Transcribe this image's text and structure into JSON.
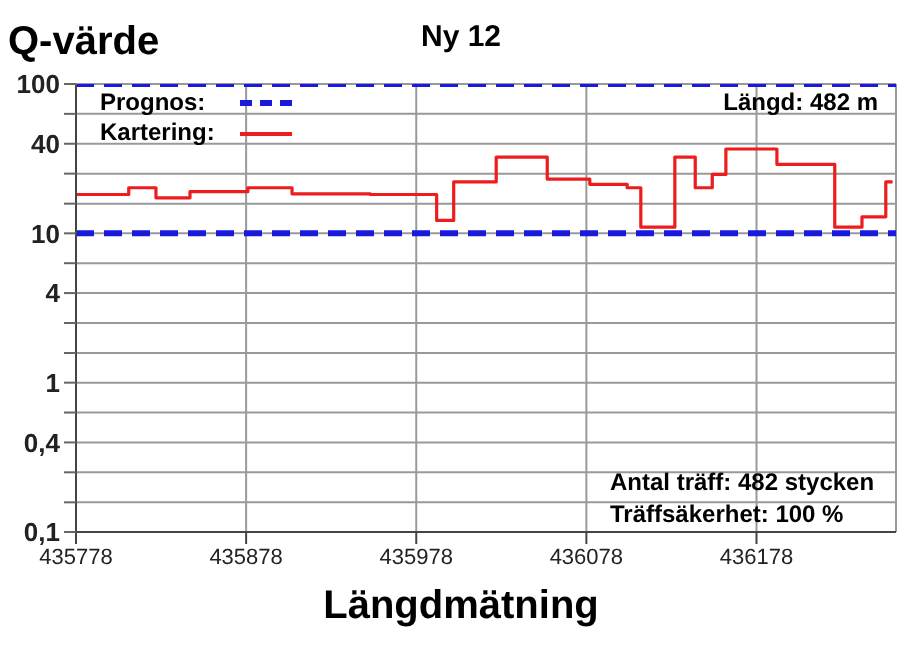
{
  "chart_data": {
    "type": "step",
    "title": "Ny 12",
    "ylabel": "Q-värde",
    "xlabel": "Längdmätning",
    "annotations": [
      "Längd: 482 m",
      "Antal träff: 482 stycken",
      "Träffsäkerhet: 100 %"
    ],
    "xlim": [
      435778,
      436260
    ],
    "xticks": [
      435778,
      435878,
      435978,
      436078,
      436178
    ],
    "ylim": [
      0.1,
      100
    ],
    "log": true,
    "yticks": [
      {
        "value": 0.1,
        "label": "0,1"
      },
      {
        "value": 0.158,
        "label": null
      },
      {
        "value": 0.251,
        "label": null
      },
      {
        "value": 0.398,
        "label": "0,4"
      },
      {
        "value": 0.631,
        "label": null
      },
      {
        "value": 1,
        "label": "1"
      },
      {
        "value": 1.58,
        "label": null
      },
      {
        "value": 2.51,
        "label": null
      },
      {
        "value": 3.98,
        "label": "4"
      },
      {
        "value": 6.31,
        "label": null
      },
      {
        "value": 10,
        "label": "10"
      },
      {
        "value": 15.8,
        "label": null
      },
      {
        "value": 25.1,
        "label": null
      },
      {
        "value": 39.8,
        "label": "40"
      },
      {
        "value": 63.1,
        "label": null
      },
      {
        "value": 100,
        "label": "100"
      }
    ],
    "grid": true,
    "legend": "top left",
    "series": [
      {
        "name": "Prognos:",
        "type": "line",
        "line_style": "dashed",
        "color": "#1a1adc",
        "x": [
          435778,
          436260
        ],
        "values": [
          10,
          10
        ]
      },
      {
        "type": "line",
        "line_style": "dashed",
        "color": "#1a1adc",
        "x": [
          435778,
          436260
        ],
        "values": [
          100,
          100
        ]
      },
      {
        "name": "Kartering:",
        "line_style": "solid",
        "color": "#ee1c1c",
        "x": [
          435778,
          435809,
          435825,
          435845,
          435879,
          435905,
          435951,
          435990,
          436000,
          436025,
          436055,
          436080,
          436102,
          436110,
          436130,
          436142,
          436152,
          436160,
          436190,
          436224,
          436240,
          436254,
          436258
        ],
        "values": [
          18.2,
          20.2,
          17.3,
          19.0,
          20.2,
          18.4,
          18.2,
          12.2,
          22.1,
          32.4,
          23.1,
          21.3,
          20.2,
          11.0,
          32.4,
          20.2,
          24.8,
          36.7,
          29.0,
          11.0,
          12.9,
          22.1,
          22.1
        ]
      }
    ]
  }
}
